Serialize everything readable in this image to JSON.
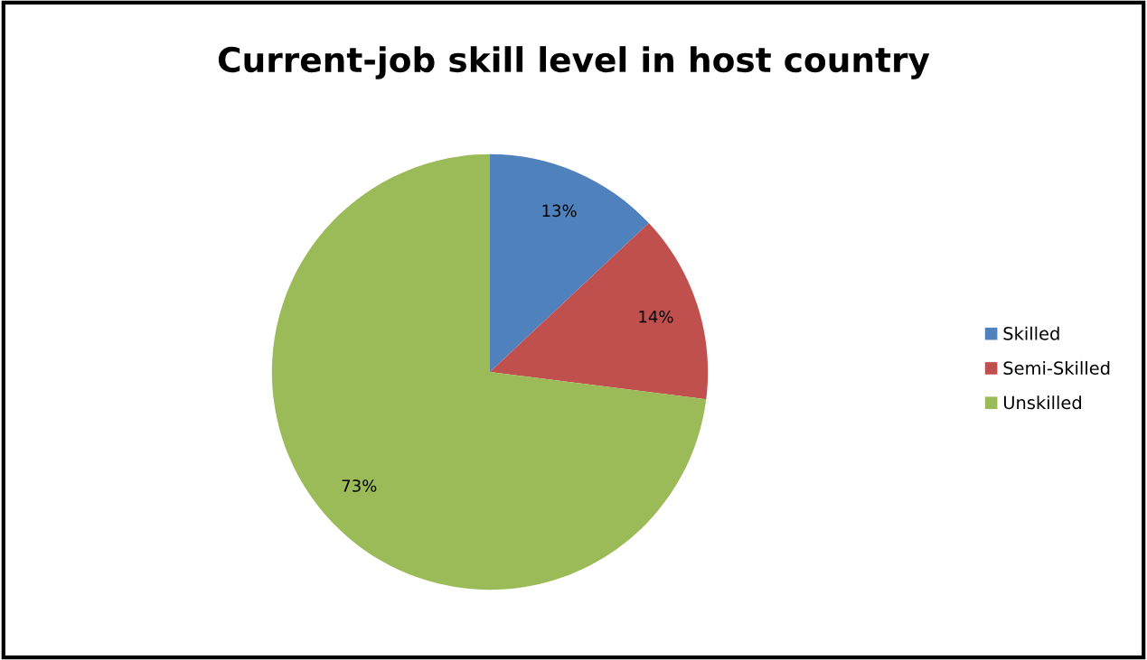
{
  "chart_data": {
    "type": "pie",
    "title": "Current-job skill level in host country",
    "categories": [
      "Skilled",
      "Semi-Skilled",
      "Unskilled"
    ],
    "values": [
      13,
      14,
      73
    ],
    "value_labels": [
      "13%",
      "14%",
      "73%"
    ],
    "colors": [
      "#4f81bd",
      "#c0504d",
      "#9bbb59"
    ],
    "legend": "right"
  }
}
